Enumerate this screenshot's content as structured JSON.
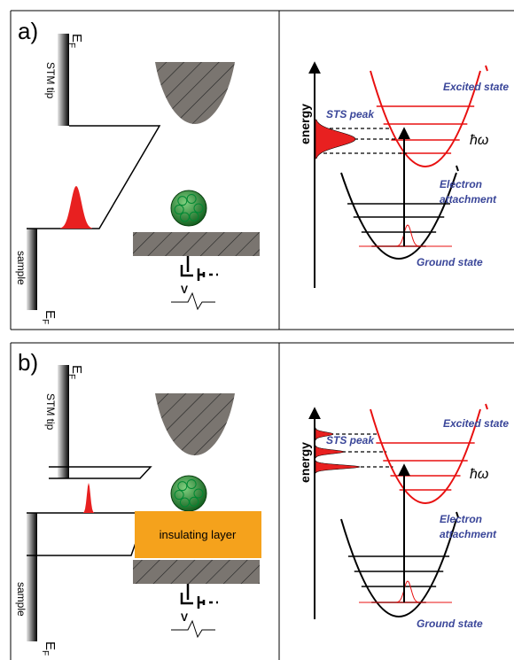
{
  "panels": [
    {
      "label": "a)",
      "fermi_tip": {
        "main": "E",
        "sub": "F"
      },
      "tip_label": "STM tip",
      "sample_label": "sample",
      "fermi_sample": {
        "main": "E",
        "sub": "F"
      },
      "bias_label": "V",
      "energy_axis": "energy",
      "excited_state": "Excited state",
      "sts_peak": "STS peak",
      "hbar_omega": "ħω",
      "electron_attachment": [
        "Electron",
        "attachment"
      ],
      "ground_state": "Ground state"
    },
    {
      "label": "b)",
      "fermi_tip": {
        "main": "E",
        "sub": "F"
      },
      "tip_label": "STM tip",
      "sample_label": "sample",
      "fermi_sample": {
        "main": "E",
        "sub": "F"
      },
      "insulating_layer": "insulating layer",
      "bias_label": "V",
      "energy_axis": "energy",
      "excited_state": "Excited state",
      "sts_peak": "STS peak",
      "hbar_omega": "ħω",
      "electron_attachment": [
        "Electron",
        "attachment"
      ],
      "ground_state": "Ground state"
    }
  ]
}
